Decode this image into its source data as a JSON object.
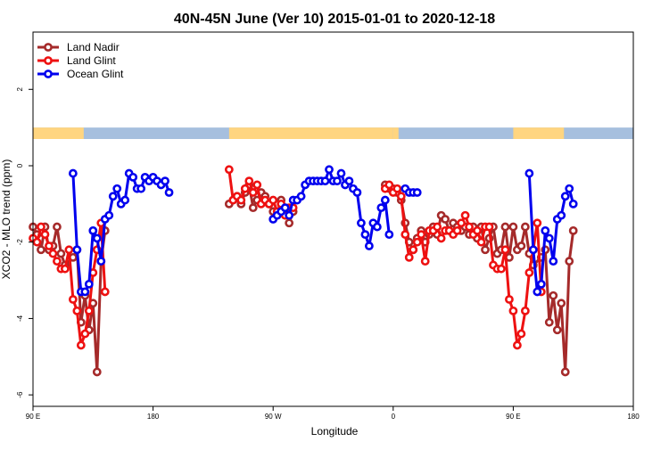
{
  "chart_data": {
    "type": "line",
    "title": "40N-45N June (Ver 10)   2015-01-01 to 2020-12-18",
    "xlabel": "Longitude",
    "ylabel": "XCO2 - MLO trend (ppm)",
    "xlim": [
      0,
      450
    ],
    "ylim": [
      -6.3,
      3.5
    ],
    "x_ticks": [
      {
        "x": 0,
        "label": "90 E"
      },
      {
        "x": 90,
        "label": "180"
      },
      {
        "x": 180,
        "label": "90 W"
      },
      {
        "x": 270,
        "label": "0"
      },
      {
        "x": 360,
        "label": "90 E"
      },
      {
        "x": 450,
        "label": "180"
      }
    ],
    "y_ticks": [
      2,
      0,
      -2,
      -4,
      -6
    ],
    "legend_position": "top-left",
    "grid": false,
    "land_ocean_band": {
      "y_range": [
        0.7,
        1.0
      ],
      "land_color": "#ffd580",
      "ocean_color": "#a6bfde",
      "land_segments": [
        [
          0,
          38
        ],
        [
          147,
          270
        ],
        [
          270,
          274
        ],
        [
          360,
          398
        ]
      ]
    },
    "series": [
      {
        "name": "Land Nadir",
        "color": "#a52a2a",
        "segments": [
          [
            [
              0,
              -1.6
            ],
            [
              3,
              -1.8
            ],
            [
              6,
              -2.2
            ],
            [
              9,
              -1.6
            ],
            [
              12,
              -2.2
            ],
            [
              15,
              -2.1
            ],
            [
              18,
              -1.6
            ],
            [
              21,
              -2.3
            ],
            [
              24,
              -2.6
            ],
            [
              30,
              -2.4
            ],
            [
              33,
              -2.2
            ],
            [
              36,
              -4.1
            ],
            [
              39,
              -3.4
            ],
            [
              42,
              -4.3
            ],
            [
              45,
              -3.6
            ],
            [
              48,
              -5.4
            ],
            [
              51,
              -2.5
            ],
            [
              54,
              -1.7
            ]
          ],
          [
            [
              147,
              -1.0
            ],
            [
              150,
              -0.9
            ],
            [
              153,
              -0.8
            ],
            [
              156,
              -1.0
            ],
            [
              159,
              -0.7
            ],
            [
              162,
              -0.5
            ],
            [
              165,
              -1.1
            ],
            [
              168,
              -0.9
            ],
            [
              171,
              -0.7
            ],
            [
              174,
              -0.8
            ],
            [
              177,
              -1.0
            ],
            [
              180,
              -1.2
            ],
            [
              183,
              -1.3
            ],
            [
              186,
              -0.9
            ],
            [
              189,
              -1.1
            ],
            [
              192,
              -1.5
            ],
            [
              195,
              -1.2
            ]
          ],
          [
            [
              264,
              -0.5
            ],
            [
              267,
              -0.6
            ],
            [
              270,
              -0.6
            ],
            [
              273,
              -0.7
            ],
            [
              276,
              -0.9
            ],
            [
              279,
              -1.5
            ],
            [
              282,
              -2.0
            ],
            [
              285,
              -2.2
            ],
            [
              288,
              -1.9
            ],
            [
              291,
              -1.7
            ],
            [
              294,
              -2.0
            ],
            [
              297,
              -1.8
            ],
            [
              300,
              -1.6
            ],
            [
              303,
              -1.8
            ],
            [
              306,
              -1.3
            ],
            [
              309,
              -1.4
            ],
            [
              312,
              -1.7
            ],
            [
              315,
              -1.5
            ],
            [
              318,
              -1.6
            ],
            [
              321,
              -1.7
            ],
            [
              324,
              -1.6
            ],
            [
              327,
              -1.8
            ],
            [
              330,
              -1.6
            ],
            [
              333,
              -1.9
            ],
            [
              336,
              -1.6
            ],
            [
              339,
              -2.2
            ],
            [
              342,
              -1.9
            ],
            [
              345,
              -1.6
            ],
            [
              348,
              -2.3
            ],
            [
              351,
              -2.2
            ],
            [
              354,
              -1.6
            ],
            [
              357,
              -2.4
            ],
            [
              360,
              -1.6
            ],
            [
              363,
              -2.2
            ],
            [
              366,
              -2.1
            ],
            [
              369,
              -1.6
            ],
            [
              372,
              -2.3
            ],
            [
              375,
              -2.6
            ],
            [
              381,
              -2.4
            ],
            [
              384,
              -2.2
            ],
            [
              387,
              -4.1
            ],
            [
              390,
              -3.4
            ],
            [
              393,
              -4.3
            ],
            [
              396,
              -3.6
            ],
            [
              399,
              -5.4
            ],
            [
              402,
              -2.5
            ],
            [
              405,
              -1.7
            ]
          ]
        ]
      },
      {
        "name": "Land Glint",
        "color": "#ee1111",
        "segments": [
          [
            [
              0,
              -1.9
            ],
            [
              3,
              -2.0
            ],
            [
              6,
              -1.6
            ],
            [
              9,
              -1.8
            ],
            [
              12,
              -2.1
            ],
            [
              15,
              -2.3
            ],
            [
              18,
              -2.5
            ],
            [
              21,
              -2.7
            ],
            [
              24,
              -2.7
            ],
            [
              27,
              -2.2
            ],
            [
              30,
              -3.5
            ],
            [
              33,
              -3.8
            ],
            [
              36,
              -4.7
            ],
            [
              39,
              -4.4
            ],
            [
              42,
              -3.8
            ],
            [
              45,
              -2.8
            ],
            [
              48,
              -2.2
            ],
            [
              51,
              -1.5
            ],
            [
              54,
              -3.3
            ]
          ],
          [
            [
              147,
              -0.1
            ],
            [
              150,
              -0.9
            ],
            [
              153,
              -0.8
            ],
            [
              156,
              -0.9
            ],
            [
              159,
              -0.6
            ],
            [
              162,
              -0.4
            ],
            [
              165,
              -0.7
            ],
            [
              168,
              -0.5
            ],
            [
              171,
              -1.0
            ],
            [
              174,
              -0.9
            ],
            [
              177,
              -1.0
            ],
            [
              180,
              -0.9
            ],
            [
              183,
              -1.2
            ],
            [
              186,
              -1.0
            ],
            [
              189,
              -1.3
            ],
            [
              192,
              -1.1
            ],
            [
              195,
              -1.1
            ]
          ],
          [
            [
              264,
              -0.6
            ],
            [
              267,
              -0.5
            ],
            [
              270,
              -0.7
            ],
            [
              273,
              -0.6
            ],
            [
              276,
              -0.8
            ],
            [
              279,
              -1.8
            ],
            [
              282,
              -2.4
            ],
            [
              285,
              -2.2
            ],
            [
              288,
              -2.0
            ],
            [
              291,
              -1.8
            ],
            [
              294,
              -2.5
            ],
            [
              297,
              -1.7
            ],
            [
              300,
              -1.7
            ],
            [
              303,
              -1.6
            ],
            [
              306,
              -1.9
            ],
            [
              309,
              -1.7
            ],
            [
              312,
              -1.7
            ],
            [
              315,
              -1.8
            ],
            [
              318,
              -1.7
            ],
            [
              321,
              -1.5
            ],
            [
              324,
              -1.3
            ],
            [
              327,
              -1.6
            ],
            [
              330,
              -1.8
            ],
            [
              333,
              -1.7
            ],
            [
              336,
              -2.0
            ],
            [
              339,
              -1.6
            ],
            [
              342,
              -1.6
            ],
            [
              345,
              -2.6
            ],
            [
              348,
              -2.7
            ],
            [
              351,
              -2.7
            ],
            [
              354,
              -2.2
            ],
            [
              357,
              -3.5
            ],
            [
              360,
              -3.8
            ],
            [
              363,
              -4.7
            ],
            [
              366,
              -4.4
            ],
            [
              369,
              -3.8
            ],
            [
              372,
              -2.8
            ],
            [
              375,
              -2.2
            ],
            [
              378,
              -1.5
            ],
            [
              381,
              -3.3
            ]
          ]
        ]
      },
      {
        "name": "Ocean Glint",
        "color": "#0000ee",
        "segments": [
          [
            [
              30,
              -0.2
            ],
            [
              33,
              -2.2
            ],
            [
              36,
              -3.3
            ],
            [
              39,
              -3.3
            ],
            [
              42,
              -3.1
            ],
            [
              45,
              -1.7
            ],
            [
              48,
              -1.9
            ],
            [
              51,
              -2.5
            ],
            [
              54,
              -1.4
            ],
            [
              57,
              -1.3
            ],
            [
              60,
              -0.8
            ],
            [
              63,
              -0.6
            ],
            [
              66,
              -1.0
            ],
            [
              69,
              -0.9
            ],
            [
              72,
              -0.2
            ],
            [
              75,
              -0.3
            ],
            [
              78,
              -0.6
            ],
            [
              81,
              -0.6
            ],
            [
              84,
              -0.3
            ],
            [
              87,
              -0.4
            ],
            [
              90,
              -0.3
            ],
            [
              93,
              -0.4
            ],
            [
              96,
              -0.5
            ],
            [
              99,
              -0.4
            ],
            [
              102,
              -0.7
            ]
          ],
          [
            [
              180,
              -1.4
            ],
            [
              183,
              -1.3
            ],
            [
              186,
              -1.2
            ],
            [
              189,
              -1.1
            ],
            [
              192,
              -1.3
            ],
            [
              195,
              -0.9
            ],
            [
              198,
              -0.9
            ],
            [
              201,
              -0.8
            ],
            [
              204,
              -0.5
            ],
            [
              207,
              -0.4
            ],
            [
              210,
              -0.4
            ],
            [
              213,
              -0.4
            ],
            [
              216,
              -0.4
            ],
            [
              219,
              -0.4
            ],
            [
              222,
              -0.1
            ],
            [
              225,
              -0.4
            ],
            [
              228,
              -0.4
            ],
            [
              231,
              -0.2
            ],
            [
              234,
              -0.5
            ],
            [
              237,
              -0.4
            ],
            [
              240,
              -0.6
            ],
            [
              243,
              -0.7
            ],
            [
              246,
              -1.5
            ],
            [
              249,
              -1.8
            ],
            [
              252,
              -2.1
            ],
            [
              255,
              -1.5
            ],
            [
              258,
              -1.6
            ],
            [
              261,
              -1.1
            ],
            [
              264,
              -0.9
            ],
            [
              267,
              -1.8
            ]
          ],
          [
            [
              279,
              -0.6
            ],
            [
              282,
              -0.7
            ],
            [
              285,
              -0.7
            ],
            [
              288,
              -0.7
            ]
          ],
          [
            [
              372,
              -0.2
            ],
            [
              375,
              -2.2
            ],
            [
              378,
              -3.3
            ],
            [
              381,
              -3.1
            ],
            [
              384,
              -1.7
            ],
            [
              387,
              -1.9
            ],
            [
              390,
              -2.5
            ],
            [
              393,
              -1.4
            ],
            [
              396,
              -1.3
            ],
            [
              399,
              -0.8
            ],
            [
              402,
              -0.6
            ],
            [
              405,
              -1.0
            ]
          ]
        ]
      }
    ]
  }
}
